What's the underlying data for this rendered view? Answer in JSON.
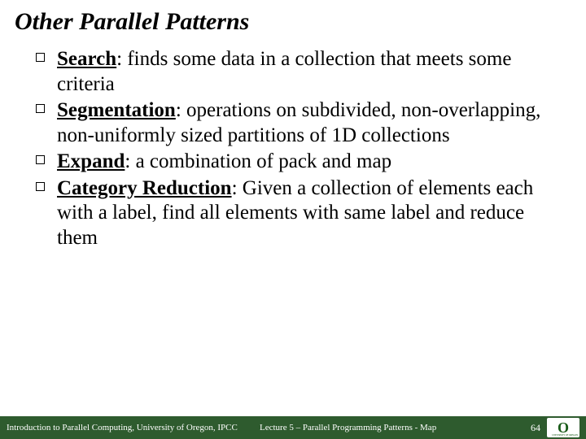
{
  "title": "Other Parallel Patterns",
  "bullets": [
    {
      "term": "Search",
      "desc": ": finds some data in a collection that meets some criteria"
    },
    {
      "term": "Segmentation",
      "desc": ": operations on subdivided, non-overlapping, non-uniformly sized partitions of 1D collections"
    },
    {
      "term": "Expand",
      "desc": ": a combination of pack and map"
    },
    {
      "term": "Category Reduction",
      "desc": ": Given a collection of elements each with a label, find all elements with same label and reduce them"
    }
  ],
  "footer": {
    "left": "Introduction to Parallel Computing, University of Oregon, IPCC",
    "center": "Lecture 5 – Parallel Programming Patterns - Map",
    "page": "64",
    "logo_letter": "O",
    "logo_sub": "UNIVERSITY OF OREGON"
  },
  "colors": {
    "footer_bg": "#2e5b2e",
    "text": "#000000",
    "footer_text": "#ffffff",
    "logo_green": "#1a5c1a"
  }
}
